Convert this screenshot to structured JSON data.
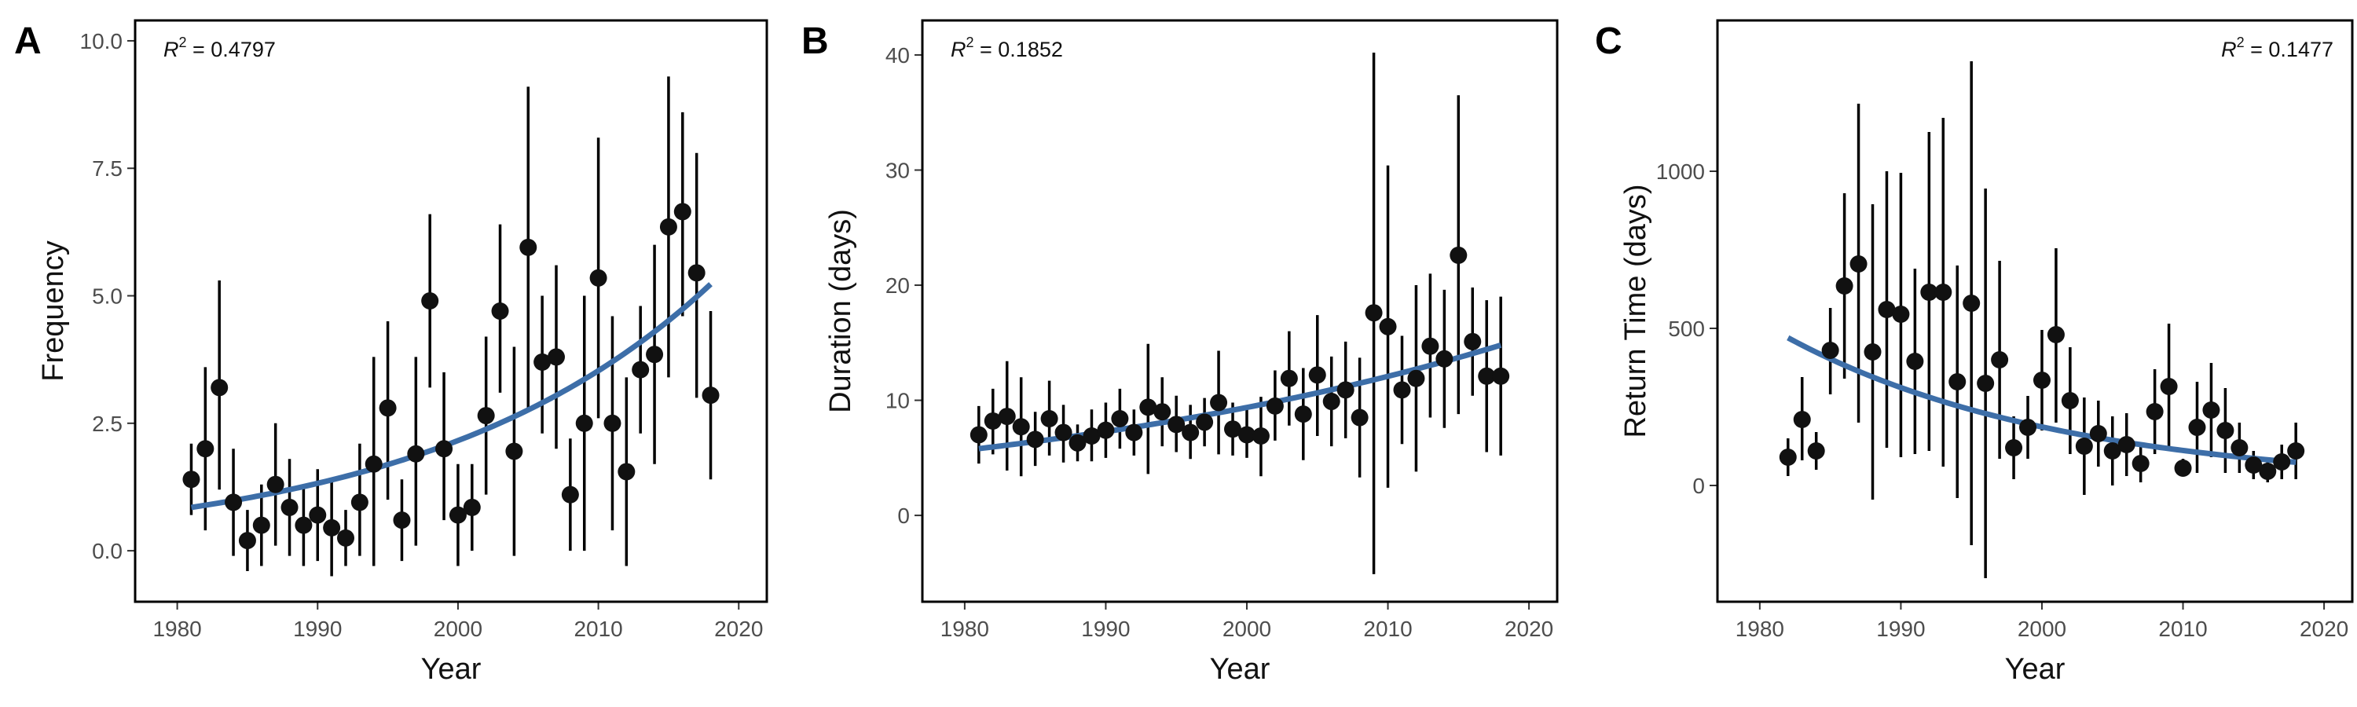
{
  "chart_data": [
    {
      "type": "scatter",
      "panel_label": "A",
      "xlabel": "Year",
      "ylabel": "Frequency",
      "annotation": {
        "r_label": "R",
        "r_sup": "2",
        "value": " = 0.4797",
        "position": "top-left"
      },
      "xlim": [
        1977,
        2022
      ],
      "ylim": [
        -1.0,
        10.4
      ],
      "x_ticks": [
        1980,
        1990,
        2000,
        2010,
        2020
      ],
      "y_ticks": [
        0.0,
        2.5,
        5.0,
        7.5,
        10.0
      ],
      "y_tick_labels": [
        "0.0",
        "2.5",
        "5.0",
        "7.5",
        "10.0"
      ],
      "grid": false,
      "trend": {
        "type": "exponential",
        "a": 0.85,
        "b": 0.0491,
        "x0": 1981,
        "x_range": [
          1981,
          2018
        ]
      },
      "points": [
        {
          "x": 1981,
          "y": 1.4,
          "low": 0.7,
          "high": 2.1
        },
        {
          "x": 1982,
          "y": 2.0,
          "low": 0.4,
          "high": 3.6
        },
        {
          "x": 1983,
          "y": 3.2,
          "low": 1.2,
          "high": 5.3
        },
        {
          "x": 1984,
          "y": 0.95,
          "low": -0.1,
          "high": 2.0
        },
        {
          "x": 1985,
          "y": 0.2,
          "low": -0.4,
          "high": 0.8
        },
        {
          "x": 1986,
          "y": 0.5,
          "low": -0.3,
          "high": 1.3
        },
        {
          "x": 1987,
          "y": 1.3,
          "low": 0.1,
          "high": 2.5
        },
        {
          "x": 1988,
          "y": 0.85,
          "low": -0.1,
          "high": 1.8
        },
        {
          "x": 1989,
          "y": 0.5,
          "low": -0.3,
          "high": 1.3
        },
        {
          "x": 1990,
          "y": 0.7,
          "low": -0.2,
          "high": 1.6
        },
        {
          "x": 1991,
          "y": 0.45,
          "low": -0.5,
          "high": 1.4
        },
        {
          "x": 1992,
          "y": 0.25,
          "low": -0.3,
          "high": 0.8
        },
        {
          "x": 1993,
          "y": 0.95,
          "low": -0.1,
          "high": 2.1
        },
        {
          "x": 1994,
          "y": 1.7,
          "low": -0.3,
          "high": 3.8
        },
        {
          "x": 1995,
          "y": 2.8,
          "low": 1.0,
          "high": 4.5
        },
        {
          "x": 1996,
          "y": 0.6,
          "low": -0.2,
          "high": 1.4
        },
        {
          "x": 1997,
          "y": 1.9,
          "low": 0.1,
          "high": 3.8
        },
        {
          "x": 1998,
          "y": 4.9,
          "low": 3.2,
          "high": 6.6
        },
        {
          "x": 1999,
          "y": 2.0,
          "low": 0.6,
          "high": 3.5
        },
        {
          "x": 2000,
          "y": 0.7,
          "low": -0.3,
          "high": 1.7
        },
        {
          "x": 2001,
          "y": 0.85,
          "low": 0.0,
          "high": 1.7
        },
        {
          "x": 2002,
          "y": 2.65,
          "low": 1.1,
          "high": 4.2
        },
        {
          "x": 2003,
          "y": 4.7,
          "low": 3.1,
          "high": 6.4
        },
        {
          "x": 2004,
          "y": 1.95,
          "low": -0.1,
          "high": 4.0
        },
        {
          "x": 2005,
          "y": 5.95,
          "low": 2.8,
          "high": 9.1
        },
        {
          "x": 2006,
          "y": 3.7,
          "low": 2.3,
          "high": 5.0
        },
        {
          "x": 2007,
          "y": 3.8,
          "low": 2.0,
          "high": 5.6
        },
        {
          "x": 2008,
          "y": 1.1,
          "low": 0.0,
          "high": 2.2
        },
        {
          "x": 2009,
          "y": 2.5,
          "low": 0.0,
          "high": 5.0
        },
        {
          "x": 2010,
          "y": 5.35,
          "low": 2.6,
          "high": 8.1
        },
        {
          "x": 2011,
          "y": 2.5,
          "low": 0.4,
          "high": 4.6
        },
        {
          "x": 2012,
          "y": 1.55,
          "low": -0.3,
          "high": 3.4
        },
        {
          "x": 2013,
          "y": 3.55,
          "low": 2.3,
          "high": 4.8
        },
        {
          "x": 2014,
          "y": 3.85,
          "low": 1.7,
          "high": 6.0
        },
        {
          "x": 2015,
          "y": 6.35,
          "low": 3.4,
          "high": 9.3
        },
        {
          "x": 2016,
          "y": 6.65,
          "low": 4.6,
          "high": 8.6
        },
        {
          "x": 2017,
          "y": 5.45,
          "low": 3.0,
          "high": 7.8
        },
        {
          "x": 2018,
          "y": 3.05,
          "low": 1.4,
          "high": 4.7
        }
      ]
    },
    {
      "type": "scatter",
      "panel_label": "B",
      "xlabel": "Year",
      "ylabel": "Duration (days)",
      "annotation": {
        "r_label": "R",
        "r_sup": "2",
        "value": " = 0.1852",
        "position": "top-left"
      },
      "xlim": [
        1977,
        2022
      ],
      "ylim": [
        -7.5,
        43.0
      ],
      "x_ticks": [
        1980,
        1990,
        2000,
        2010,
        2020
      ],
      "y_ticks": [
        0,
        10,
        20,
        30,
        40
      ],
      "y_tick_labels": [
        "0",
        "10",
        "20",
        "30",
        "40"
      ],
      "grid": false,
      "trend": {
        "type": "exponential",
        "a": 5.8,
        "b": 0.0253,
        "x0": 1981,
        "x_range": [
          1981,
          2018
        ]
      },
      "points": [
        {
          "x": 1981,
          "y": 7.0,
          "low": 4.5,
          "high": 9.5
        },
        {
          "x": 1982,
          "y": 8.2,
          "low": 5.3,
          "high": 11.0
        },
        {
          "x": 1983,
          "y": 8.6,
          "low": 3.9,
          "high": 13.4
        },
        {
          "x": 1984,
          "y": 7.7,
          "low": 3.4,
          "high": 12.0
        },
        {
          "x": 1985,
          "y": 6.6,
          "low": 4.3,
          "high": 9.0
        },
        {
          "x": 1986,
          "y": 8.4,
          "low": 5.2,
          "high": 11.7
        },
        {
          "x": 1987,
          "y": 7.2,
          "low": 4.6,
          "high": 9.6
        },
        {
          "x": 1988,
          "y": 6.3,
          "low": 4.7,
          "high": 7.9
        },
        {
          "x": 1989,
          "y": 6.9,
          "low": 4.7,
          "high": 9.2
        },
        {
          "x": 1990,
          "y": 7.4,
          "low": 5.0,
          "high": 9.8
        },
        {
          "x": 1991,
          "y": 8.4,
          "low": 5.8,
          "high": 11.0
        },
        {
          "x": 1992,
          "y": 7.2,
          "low": 5.2,
          "high": 9.2
        },
        {
          "x": 1993,
          "y": 9.4,
          "low": 3.6,
          "high": 14.9
        },
        {
          "x": 1994,
          "y": 9.0,
          "low": 6.0,
          "high": 12.0
        },
        {
          "x": 1995,
          "y": 7.9,
          "low": 5.5,
          "high": 10.4
        },
        {
          "x": 1996,
          "y": 7.2,
          "low": 4.9,
          "high": 9.6
        },
        {
          "x": 1997,
          "y": 8.1,
          "low": 6.0,
          "high": 10.2
        },
        {
          "x": 1998,
          "y": 9.8,
          "low": 5.3,
          "high": 14.3
        },
        {
          "x": 1999,
          "y": 7.5,
          "low": 5.2,
          "high": 9.8
        },
        {
          "x": 2000,
          "y": 7.0,
          "low": 5.0,
          "high": 9.2
        },
        {
          "x": 2001,
          "y": 6.9,
          "low": 3.4,
          "high": 10.3
        },
        {
          "x": 2002,
          "y": 9.5,
          "low": 6.5,
          "high": 12.6
        },
        {
          "x": 2003,
          "y": 11.9,
          "low": 7.8,
          "high": 16.0
        },
        {
          "x": 2004,
          "y": 8.8,
          "low": 4.8,
          "high": 12.8
        },
        {
          "x": 2005,
          "y": 12.2,
          "low": 6.9,
          "high": 17.4
        },
        {
          "x": 2006,
          "y": 9.9,
          "low": 6.0,
          "high": 13.8
        },
        {
          "x": 2007,
          "y": 10.9,
          "low": 6.7,
          "high": 15.1
        },
        {
          "x": 2008,
          "y": 8.5,
          "low": 3.3,
          "high": 13.7
        },
        {
          "x": 2009,
          "y": 17.6,
          "low": -5.1,
          "high": 40.2
        },
        {
          "x": 2010,
          "y": 16.4,
          "low": 2.4,
          "high": 30.4
        },
        {
          "x": 2011,
          "y": 10.9,
          "low": 6.2,
          "high": 15.6
        },
        {
          "x": 2012,
          "y": 11.9,
          "low": 3.8,
          "high": 20.0
        },
        {
          "x": 2013,
          "y": 14.7,
          "low": 8.5,
          "high": 21.0
        },
        {
          "x": 2014,
          "y": 13.6,
          "low": 7.6,
          "high": 19.6
        },
        {
          "x": 2015,
          "y": 22.6,
          "low": 8.8,
          "high": 36.5
        },
        {
          "x": 2016,
          "y": 15.1,
          "low": 10.4,
          "high": 19.8
        },
        {
          "x": 2017,
          "y": 12.1,
          "low": 5.5,
          "high": 18.7
        },
        {
          "x": 2018,
          "y": 12.1,
          "low": 5.2,
          "high": 19.0
        }
      ]
    },
    {
      "type": "scatter",
      "panel_label": "C",
      "xlabel": "Year",
      "ylabel": "Return Time (days)",
      "annotation": {
        "r_label": "R",
        "r_sup": "2",
        "value": " = 0.1477",
        "position": "top-right"
      },
      "xlim": [
        1977,
        2022
      ],
      "ylim": [
        -370,
        1480
      ],
      "x_ticks": [
        1980,
        1990,
        2000,
        2010,
        2020
      ],
      "y_ticks": [
        0,
        500,
        1000
      ],
      "y_tick_labels": [
        "0",
        "500",
        "1000"
      ],
      "grid": false,
      "trend": {
        "type": "exponential",
        "a": 470,
        "b": -0.0514,
        "x0": 1982,
        "x_range": [
          1982,
          2018
        ]
      },
      "points": [
        {
          "x": 1982,
          "y": 90,
          "low": 30,
          "high": 150
        },
        {
          "x": 1983,
          "y": 210,
          "low": 80,
          "high": 345
        },
        {
          "x": 1984,
          "y": 110,
          "low": 50,
          "high": 170
        },
        {
          "x": 1985,
          "y": 430,
          "low": 290,
          "high": 565
        },
        {
          "x": 1986,
          "y": 635,
          "low": 340,
          "high": 930
        },
        {
          "x": 1987,
          "y": 705,
          "low": 200,
          "high": 1215
        },
        {
          "x": 1988,
          "y": 425,
          "low": -45,
          "high": 895
        },
        {
          "x": 1989,
          "y": 560,
          "low": 120,
          "high": 1000
        },
        {
          "x": 1990,
          "y": 545,
          "low": 90,
          "high": 995
        },
        {
          "x": 1991,
          "y": 395,
          "low": 100,
          "high": 690
        },
        {
          "x": 1992,
          "y": 615,
          "low": 110,
          "high": 1125
        },
        {
          "x": 1993,
          "y": 615,
          "low": 60,
          "high": 1170
        },
        {
          "x": 1994,
          "y": 330,
          "low": -40,
          "high": 700
        },
        {
          "x": 1995,
          "y": 580,
          "low": -190,
          "high": 1350
        },
        {
          "x": 1996,
          "y": 325,
          "low": -295,
          "high": 945
        },
        {
          "x": 1997,
          "y": 400,
          "low": 85,
          "high": 715
        },
        {
          "x": 1998,
          "y": 120,
          "low": 20,
          "high": 220
        },
        {
          "x": 1999,
          "y": 185,
          "low": 85,
          "high": 285
        },
        {
          "x": 2000,
          "y": 335,
          "low": 175,
          "high": 495
        },
        {
          "x": 2001,
          "y": 480,
          "low": 200,
          "high": 755
        },
        {
          "x": 2002,
          "y": 270,
          "low": 100,
          "high": 440
        },
        {
          "x": 2003,
          "y": 125,
          "low": -30,
          "high": 280
        },
        {
          "x": 2004,
          "y": 165,
          "low": 60,
          "high": 270
        },
        {
          "x": 2005,
          "y": 110,
          "low": 0,
          "high": 220
        },
        {
          "x": 2006,
          "y": 130,
          "low": 30,
          "high": 230
        },
        {
          "x": 2007,
          "y": 70,
          "low": 10,
          "high": 130
        },
        {
          "x": 2008,
          "y": 235,
          "low": 100,
          "high": 370
        },
        {
          "x": 2009,
          "y": 315,
          "low": 115,
          "high": 515
        },
        {
          "x": 2010,
          "y": 55,
          "low": 30,
          "high": 85
        },
        {
          "x": 2011,
          "y": 185,
          "low": 40,
          "high": 330
        },
        {
          "x": 2012,
          "y": 240,
          "low": 90,
          "high": 390
        },
        {
          "x": 2013,
          "y": 175,
          "low": 40,
          "high": 310
        },
        {
          "x": 2014,
          "y": 120,
          "low": 40,
          "high": 200
        },
        {
          "x": 2015,
          "y": 65,
          "low": 20,
          "high": 110
        },
        {
          "x": 2016,
          "y": 45,
          "low": 10,
          "high": 80
        },
        {
          "x": 2017,
          "y": 75,
          "low": 20,
          "high": 130
        },
        {
          "x": 2018,
          "y": 110,
          "low": 20,
          "high": 200
        }
      ]
    }
  ],
  "colors": {
    "points": "#111111",
    "error_bars": "#000000",
    "trend_line": "#3d6ea8",
    "panel_border": "#000000"
  }
}
